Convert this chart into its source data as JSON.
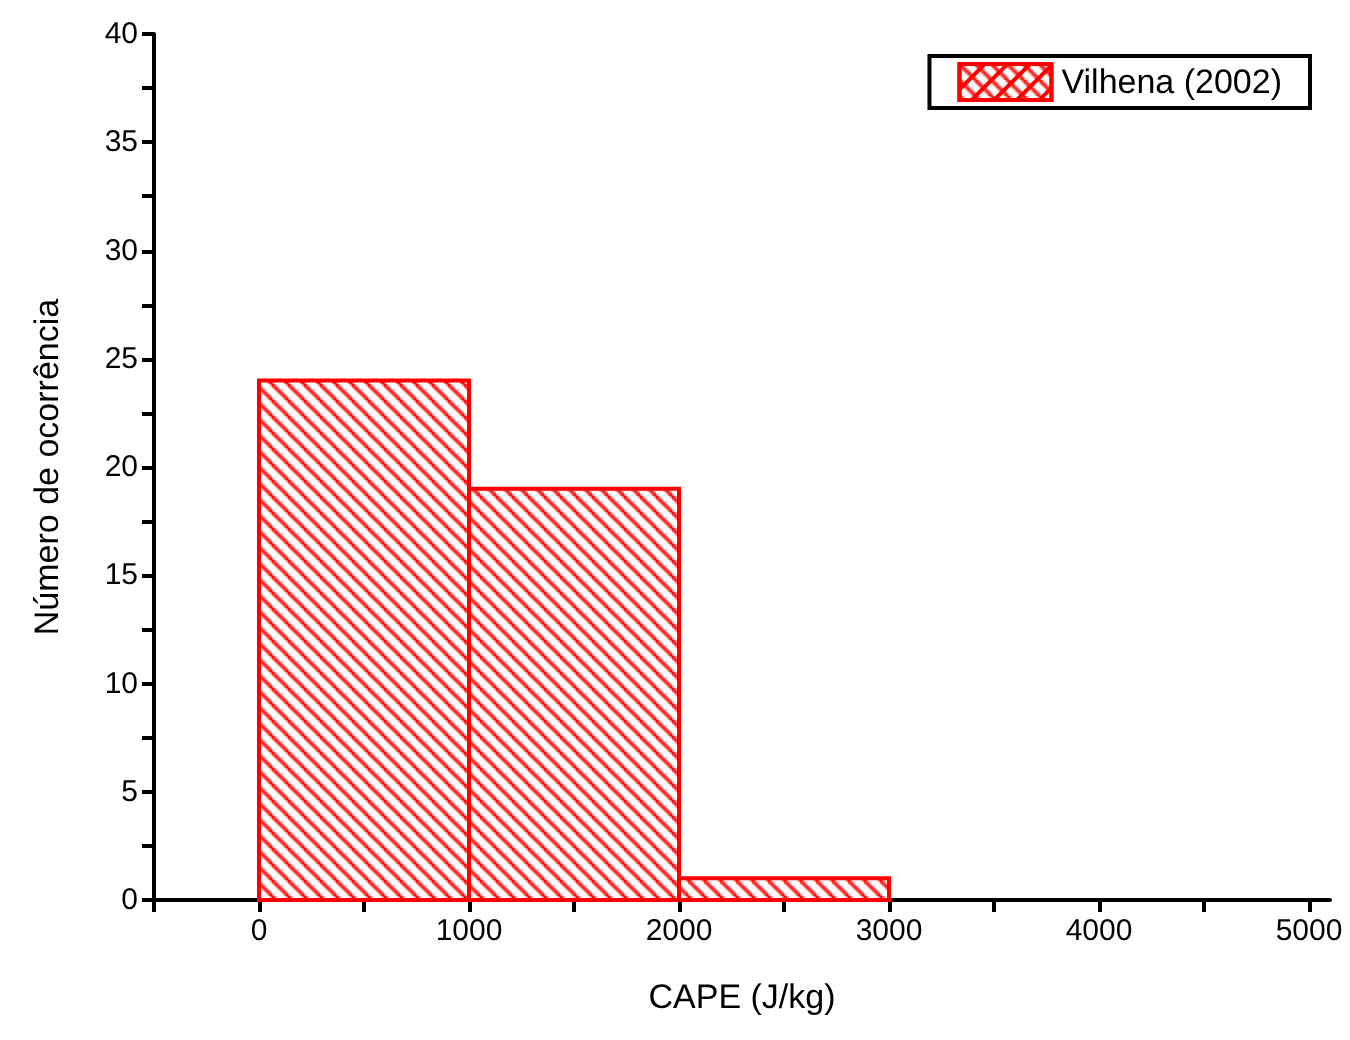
{
  "chart_data": {
    "type": "histogram",
    "xlabel": "CAPE (J/kg)",
    "ylabel": "Número de ocorrência",
    "series": [
      {
        "name": "Vilhena (2002)",
        "color": "#ff0000",
        "values": [
          24,
          19,
          1
        ]
      }
    ],
    "bins": [
      0,
      1000,
      2000,
      3000
    ],
    "xlim": [
      -500,
      5100
    ],
    "xticks": [
      {
        "value": -500,
        "label": null
      },
      0,
      {
        "value": 500,
        "label": null
      },
      1000,
      {
        "value": 1500,
        "label": null
      },
      2000,
      {
        "value": 2500,
        "label": null
      },
      3000,
      {
        "value": 3500,
        "label": null
      },
      4000,
      {
        "value": 4500,
        "label": null
      },
      5000
    ],
    "ylim": [
      0,
      40
    ],
    "yticks": [
      0,
      {
        "value": 2.5,
        "label": null
      },
      5,
      {
        "value": 7.5,
        "label": null
      },
      10,
      {
        "value": 12.5,
        "label": null
      },
      15,
      {
        "value": 17.5,
        "label": null
      },
      20,
      {
        "value": 22.5,
        "label": null
      },
      25,
      {
        "value": 27.5,
        "label": null
      },
      30,
      {
        "value": 32.5,
        "label": null
      },
      35,
      {
        "value": 37.5,
        "label": null
      },
      40
    ],
    "grid": false,
    "legend": "top right"
  }
}
